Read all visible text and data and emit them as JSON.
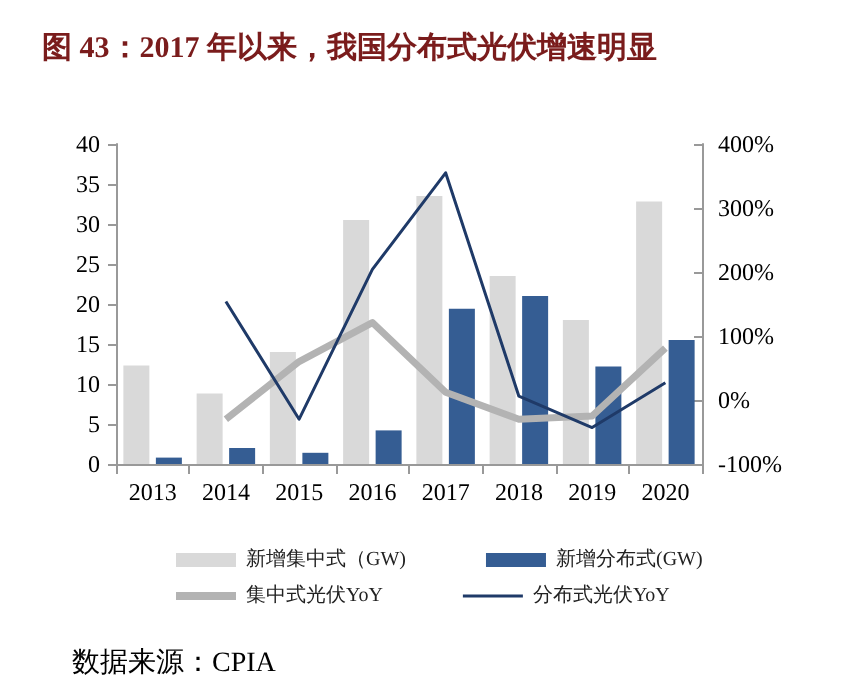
{
  "chart_data": {
    "type": "bar",
    "title": "图 43：2017 年以来，我国分布式光伏增速明显",
    "categories": [
      "2013",
      "2014",
      "2015",
      "2016",
      "2017",
      "2018",
      "2019",
      "2020"
    ],
    "series": [
      {
        "name": "新增集中式（GW)",
        "color": "#d9d9d9",
        "values": [
          12.3,
          8.8,
          14,
          30.5,
          33.5,
          23.5,
          18,
          32.8
        ]
      },
      {
        "name": "新增分布式(GW)",
        "color": "#355d93",
        "values": [
          0.8,
          2,
          1.4,
          4.2,
          19.4,
          21,
          12.2,
          15.5
        ]
      },
      {
        "name": "集中式光伏YoY",
        "type": "line",
        "axis": "y2",
        "color": "#b3b3b3",
        "values": [
          null,
          -30,
          60,
          121,
          12,
          -30,
          -25,
          81
        ]
      },
      {
        "name": "分布式光伏YoY",
        "type": "line",
        "axis": "y2",
        "color": "#1f3a68",
        "values": [
          null,
          154,
          -30,
          204,
          355,
          6,
          -43,
          27
        ]
      }
    ],
    "ylim": [
      0,
      40
    ],
    "yticks": [
      0,
      5,
      10,
      15,
      20,
      25,
      30,
      35,
      40
    ],
    "y2lim": [
      -100,
      400
    ],
    "y2ticks": [
      {
        "value": -100,
        "label": "-100%"
      },
      {
        "value": 0,
        "label": "0%"
      },
      {
        "value": 100,
        "label": "100%"
      },
      {
        "value": 200,
        "label": "200%"
      },
      {
        "value": 300,
        "label": "300%"
      },
      {
        "value": 400,
        "label": "400%"
      }
    ],
    "grid": false,
    "legend": "bottom",
    "marker": "none",
    "annotations": [
      "数据来源：CPIA"
    ]
  }
}
